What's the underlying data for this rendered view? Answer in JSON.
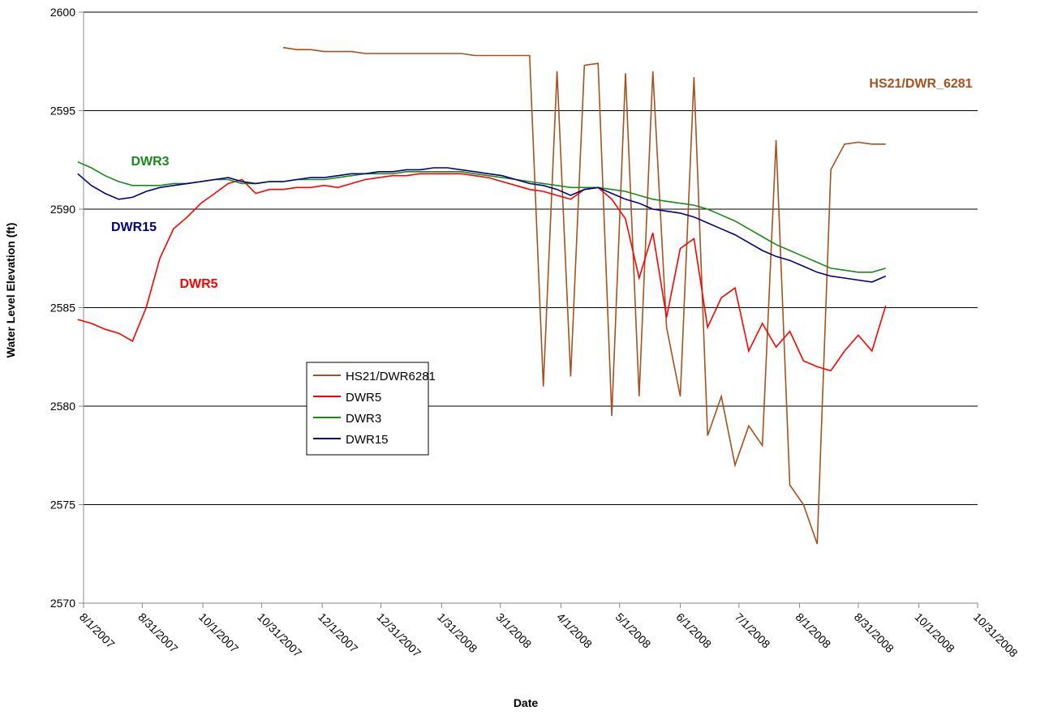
{
  "chart_data": {
    "type": "line",
    "x_label": "Date",
    "y_label": "Water Level Elevation (ft)",
    "xlim": [
      "2007-08-01",
      "2008-10-31"
    ],
    "xticks": [
      {
        "value": "2007-08-01",
        "label": "8/1/2007"
      },
      {
        "value": "2007-08-31",
        "label": "8/31/2007"
      },
      {
        "value": "2007-10-01",
        "label": "10/1/2007"
      },
      {
        "value": "2007-10-31",
        "label": "10/31/2007"
      },
      {
        "value": "2007-12-01",
        "label": "12/1/2007"
      },
      {
        "value": "2007-12-31",
        "label": "12/31/2007"
      },
      {
        "value": "2008-01-31",
        "label": "1/31/2008"
      },
      {
        "value": "2008-03-01",
        "label": "3/1/2008"
      },
      {
        "value": "2008-04-01",
        "label": "4/1/2008"
      },
      {
        "value": "2008-05-01",
        "label": "5/1/2008"
      },
      {
        "value": "2008-06-01",
        "label": "6/1/2008"
      },
      {
        "value": "2008-07-01",
        "label": "7/1/2008"
      },
      {
        "value": "2008-08-01",
        "label": "8/1/2008"
      },
      {
        "value": "2008-08-31",
        "label": "8/31/2008"
      },
      {
        "value": "2008-10-01",
        "label": "10/1/2008"
      },
      {
        "value": "2008-10-31",
        "label": "10/31/2008"
      }
    ],
    "ylim": [
      2570,
      2600
    ],
    "yticks": [
      2570,
      2575,
      2580,
      2585,
      2590,
      2595,
      2600
    ],
    "grid": true,
    "x": [
      "2007-07-29",
      "2007-08-05",
      "2007-08-12",
      "2007-08-19",
      "2007-08-26",
      "2007-09-02",
      "2007-09-09",
      "2007-09-16",
      "2007-09-23",
      "2007-09-30",
      "2007-10-07",
      "2007-10-14",
      "2007-10-21",
      "2007-10-28",
      "2007-11-04",
      "2007-11-11",
      "2007-11-18",
      "2007-11-25",
      "2007-12-02",
      "2007-12-09",
      "2007-12-16",
      "2007-12-23",
      "2007-12-30",
      "2008-01-06",
      "2008-01-13",
      "2008-01-20",
      "2008-01-27",
      "2008-02-03",
      "2008-02-10",
      "2008-02-17",
      "2008-02-24",
      "2008-03-02",
      "2008-03-09",
      "2008-03-16",
      "2008-03-23",
      "2008-03-30",
      "2008-04-06",
      "2008-04-13",
      "2008-04-20",
      "2008-04-27",
      "2008-05-04",
      "2008-05-11",
      "2008-05-18",
      "2008-05-25",
      "2008-06-01",
      "2008-06-08",
      "2008-06-15",
      "2008-06-22",
      "2008-06-29",
      "2008-07-06",
      "2008-07-13",
      "2008-07-20",
      "2008-07-27",
      "2008-08-03",
      "2008-08-10",
      "2008-08-17",
      "2008-08-24",
      "2008-08-31",
      "2008-09-07",
      "2008-09-14"
    ],
    "series": [
      {
        "name": "HS21/DWR6281",
        "color": "#a5521f",
        "values": [
          null,
          null,
          null,
          null,
          null,
          null,
          null,
          null,
          null,
          null,
          null,
          null,
          null,
          null,
          null,
          2598.2,
          2598.1,
          2598.1,
          2598.0,
          2598.0,
          2598.0,
          2597.9,
          2597.9,
          2597.9,
          2597.9,
          2597.9,
          2597.9,
          2597.9,
          2597.9,
          2597.8,
          2597.8,
          2597.8,
          2597.8,
          2597.8,
          2581.0,
          2597.0,
          2581.5,
          2597.3,
          2597.4,
          2579.5,
          2596.9,
          2580.5,
          2597.0,
          2584.0,
          2580.5,
          2596.7,
          2578.5,
          2580.5,
          2577.0,
          2579.0,
          2578.0,
          2593.5,
          2576.0,
          2575.0,
          2573.0,
          2592.0,
          2593.3,
          2593.4,
          2593.3,
          2593.3
        ]
      },
      {
        "name": "DWR5",
        "color": "#ff0000",
        "values": [
          2584.4,
          2584.2,
          2583.9,
          2583.7,
          2583.3,
          2585.0,
          2587.5,
          2589.0,
          2589.6,
          2590.3,
          2590.8,
          2591.3,
          2591.5,
          2590.8,
          2591.0,
          2591.0,
          2591.1,
          2591.1,
          2591.2,
          2591.1,
          2591.3,
          2591.5,
          2591.6,
          2591.7,
          2591.7,
          2591.8,
          2591.8,
          2591.8,
          2591.8,
          2591.7,
          2591.6,
          2591.4,
          2591.2,
          2591.0,
          2590.9,
          2590.7,
          2590.5,
          2591.0,
          2591.1,
          2590.5,
          2589.5,
          2586.5,
          2588.8,
          2584.5,
          2588.0,
          2588.5,
          2584.0,
          2585.5,
          2586.0,
          2582.8,
          2584.2,
          2583.0,
          2583.8,
          2582.3,
          2582.0,
          2581.8,
          2582.8,
          2583.6,
          2582.8,
          2585.1
        ]
      },
      {
        "name": "DWR3",
        "color": "#1a8a1a",
        "values": [
          2592.4,
          2592.1,
          2591.7,
          2591.4,
          2591.2,
          2591.2,
          2591.2,
          2591.3,
          2591.3,
          2591.4,
          2591.5,
          2591.5,
          2591.3,
          2591.3,
          2591.4,
          2591.4,
          2591.5,
          2591.5,
          2591.5,
          2591.6,
          2591.7,
          2591.8,
          2591.8,
          2591.8,
          2591.9,
          2591.9,
          2591.9,
          2591.9,
          2591.9,
          2591.8,
          2591.7,
          2591.6,
          2591.5,
          2591.4,
          2591.3,
          2591.2,
          2591.1,
          2591.1,
          2591.1,
          2591.0,
          2590.9,
          2590.7,
          2590.5,
          2590.4,
          2590.3,
          2590.2,
          2590.0,
          2589.7,
          2589.4,
          2589.0,
          2588.6,
          2588.2,
          2587.9,
          2587.6,
          2587.3,
          2587.0,
          2586.9,
          2586.8,
          2586.8,
          2587.0
        ]
      },
      {
        "name": "DWR15",
        "color": "#000080",
        "values": [
          2591.8,
          2591.2,
          2590.8,
          2590.5,
          2590.6,
          2590.9,
          2591.1,
          2591.2,
          2591.3,
          2591.4,
          2591.5,
          2591.6,
          2591.4,
          2591.3,
          2591.4,
          2591.4,
          2591.5,
          2591.6,
          2591.6,
          2591.7,
          2591.8,
          2591.8,
          2591.9,
          2591.9,
          2592.0,
          2592.0,
          2592.1,
          2592.1,
          2592.0,
          2591.9,
          2591.8,
          2591.7,
          2591.5,
          2591.3,
          2591.2,
          2591.0,
          2590.7,
          2591.0,
          2591.1,
          2590.8,
          2590.5,
          2590.3,
          2590.0,
          2589.9,
          2589.8,
          2589.6,
          2589.3,
          2589.0,
          2588.7,
          2588.3,
          2587.9,
          2587.6,
          2587.4,
          2587.1,
          2586.8,
          2586.6,
          2586.5,
          2586.4,
          2586.3,
          2586.6
        ]
      }
    ],
    "annotations": [
      "HS21/DWR_6281",
      "DWR3",
      "DWR15",
      "DWR5"
    ]
  }
}
